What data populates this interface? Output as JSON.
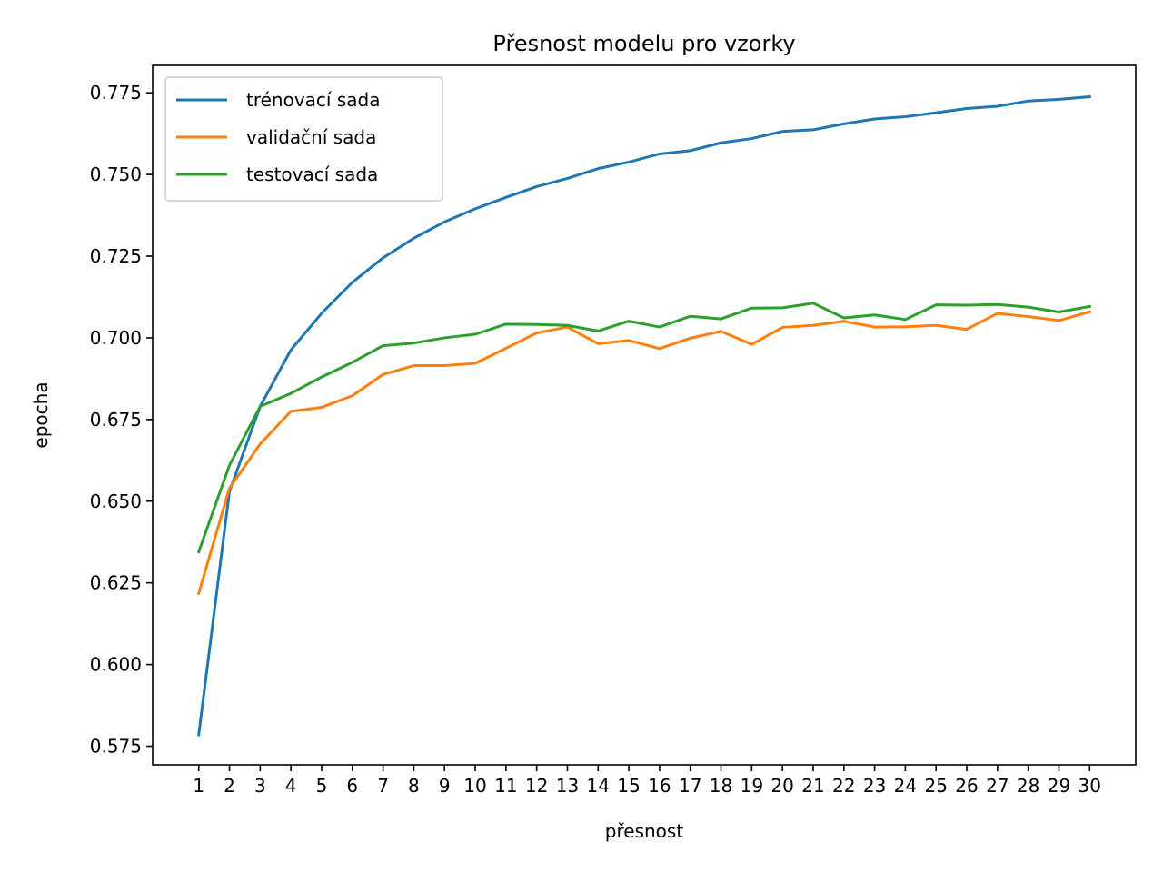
{
  "chart_data": {
    "type": "line",
    "title": "Přesnost modelu pro vzorky",
    "xlabel": "přesnost",
    "ylabel": "epocha",
    "x": [
      1,
      2,
      3,
      4,
      5,
      6,
      7,
      8,
      9,
      10,
      11,
      12,
      13,
      14,
      15,
      16,
      17,
      18,
      19,
      20,
      21,
      22,
      23,
      24,
      25,
      26,
      27,
      28,
      29,
      30
    ],
    "x_tick_labels": [
      "1",
      "2",
      "3",
      "4",
      "5",
      "6",
      "7",
      "8",
      "9",
      "10",
      "11",
      "12",
      "13",
      "14",
      "15",
      "16",
      "17",
      "18",
      "19",
      "20",
      "21",
      "22",
      "23",
      "24",
      "25",
      "26",
      "27",
      "28",
      "29",
      "30"
    ],
    "xlim": [
      -0.5,
      31.5
    ],
    "ylim": [
      0.5693,
      0.7834
    ],
    "y_ticks": [
      0.575,
      0.6,
      0.625,
      0.65,
      0.675,
      0.7,
      0.725,
      0.75,
      0.775
    ],
    "y_tick_labels": [
      "0.575",
      "0.600",
      "0.625",
      "0.650",
      "0.675",
      "0.700",
      "0.725",
      "0.750",
      "0.775"
    ],
    "grid": false,
    "legend_position": "top-left",
    "series": [
      {
        "name": "trénovací sada",
        "color": "#1f77b4",
        "values": [
          0.5785,
          0.653,
          0.679,
          0.6963,
          0.7075,
          0.717,
          0.7245,
          0.7305,
          0.7355,
          0.7395,
          0.743,
          0.7463,
          0.7488,
          0.7518,
          0.7538,
          0.7563,
          0.7573,
          0.7597,
          0.761,
          0.7632,
          0.7637,
          0.7655,
          0.767,
          0.7677,
          0.7689,
          0.7702,
          0.7709,
          0.7725,
          0.773,
          0.7738
        ]
      },
      {
        "name": "validační sada",
        "color": "#ff7f0e",
        "values": [
          0.6218,
          0.654,
          0.6675,
          0.6775,
          0.6787,
          0.6823,
          0.6888,
          0.6915,
          0.6915,
          0.6922,
          0.6968,
          0.7015,
          0.7033,
          0.6982,
          0.6992,
          0.6967,
          0.6999,
          0.702,
          0.698,
          0.7032,
          0.7038,
          0.7051,
          0.7033,
          0.7034,
          0.7038,
          0.7026,
          0.7075,
          0.7065,
          0.7053,
          0.708
        ]
      },
      {
        "name": "testovací sada",
        "color": "#2ca02c",
        "values": [
          0.6345,
          0.661,
          0.679,
          0.683,
          0.688,
          0.6925,
          0.6976,
          0.6984,
          0.7,
          0.7011,
          0.7042,
          0.7041,
          0.7038,
          0.7021,
          0.7051,
          0.7033,
          0.7066,
          0.7058,
          0.7091,
          0.7092,
          0.7106,
          0.7061,
          0.707,
          0.7056,
          0.7101,
          0.71,
          0.7102,
          0.7094,
          0.7079,
          0.7096
        ]
      }
    ]
  }
}
